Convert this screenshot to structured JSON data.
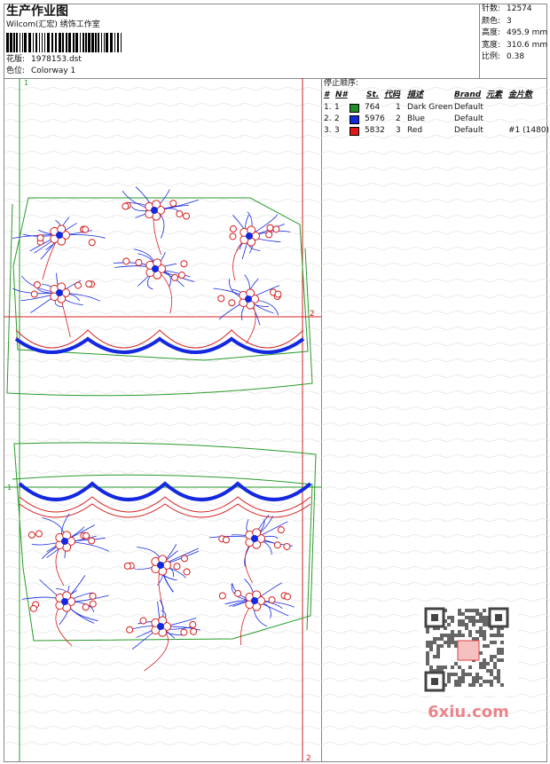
{
  "header": {
    "title": "生产作业图",
    "company": "Wilcom(汇宏) 绣饰工作室",
    "design_label": "花版:",
    "design": "1978153.dst",
    "colorway_label": "色位:",
    "colorway": "Colorway 1"
  },
  "info": [
    {
      "label": "针数:",
      "value": "12574"
    },
    {
      "label": "颜色:",
      "value": "3"
    },
    {
      "label": "高度:",
      "value": "495.9 mm"
    },
    {
      "label": "宽度:",
      "value": "310.6 mm"
    },
    {
      "label": "比例:",
      "value": "0.38"
    }
  ],
  "stop_sequence": {
    "title": "停止顺序:",
    "columns": [
      "#",
      "N#",
      "St.",
      "代码",
      "描述",
      "Brand",
      "元素",
      "金片数"
    ],
    "rows": [
      {
        "index": "1.",
        "n": "1",
        "stitches": "764",
        "code": "1",
        "description": "Dark Green",
        "brand": "Default",
        "swatch": "#1f8f2a"
      },
      {
        "index": "2.",
        "n": "2",
        "stitches": "5976",
        "code": "2",
        "description": "Blue",
        "brand": "Default",
        "swatch": "#1428e0"
      },
      {
        "index": "3.",
        "n": "3",
        "stitches": "5832",
        "code": "3",
        "description": "Red",
        "brand": "Default",
        "sequins": "#1 (1480)",
        "swatch": "#e01818"
      }
    ]
  },
  "markers": [
    "1",
    "2",
    "1",
    "2"
  ],
  "watermark": "6xiu.com"
}
